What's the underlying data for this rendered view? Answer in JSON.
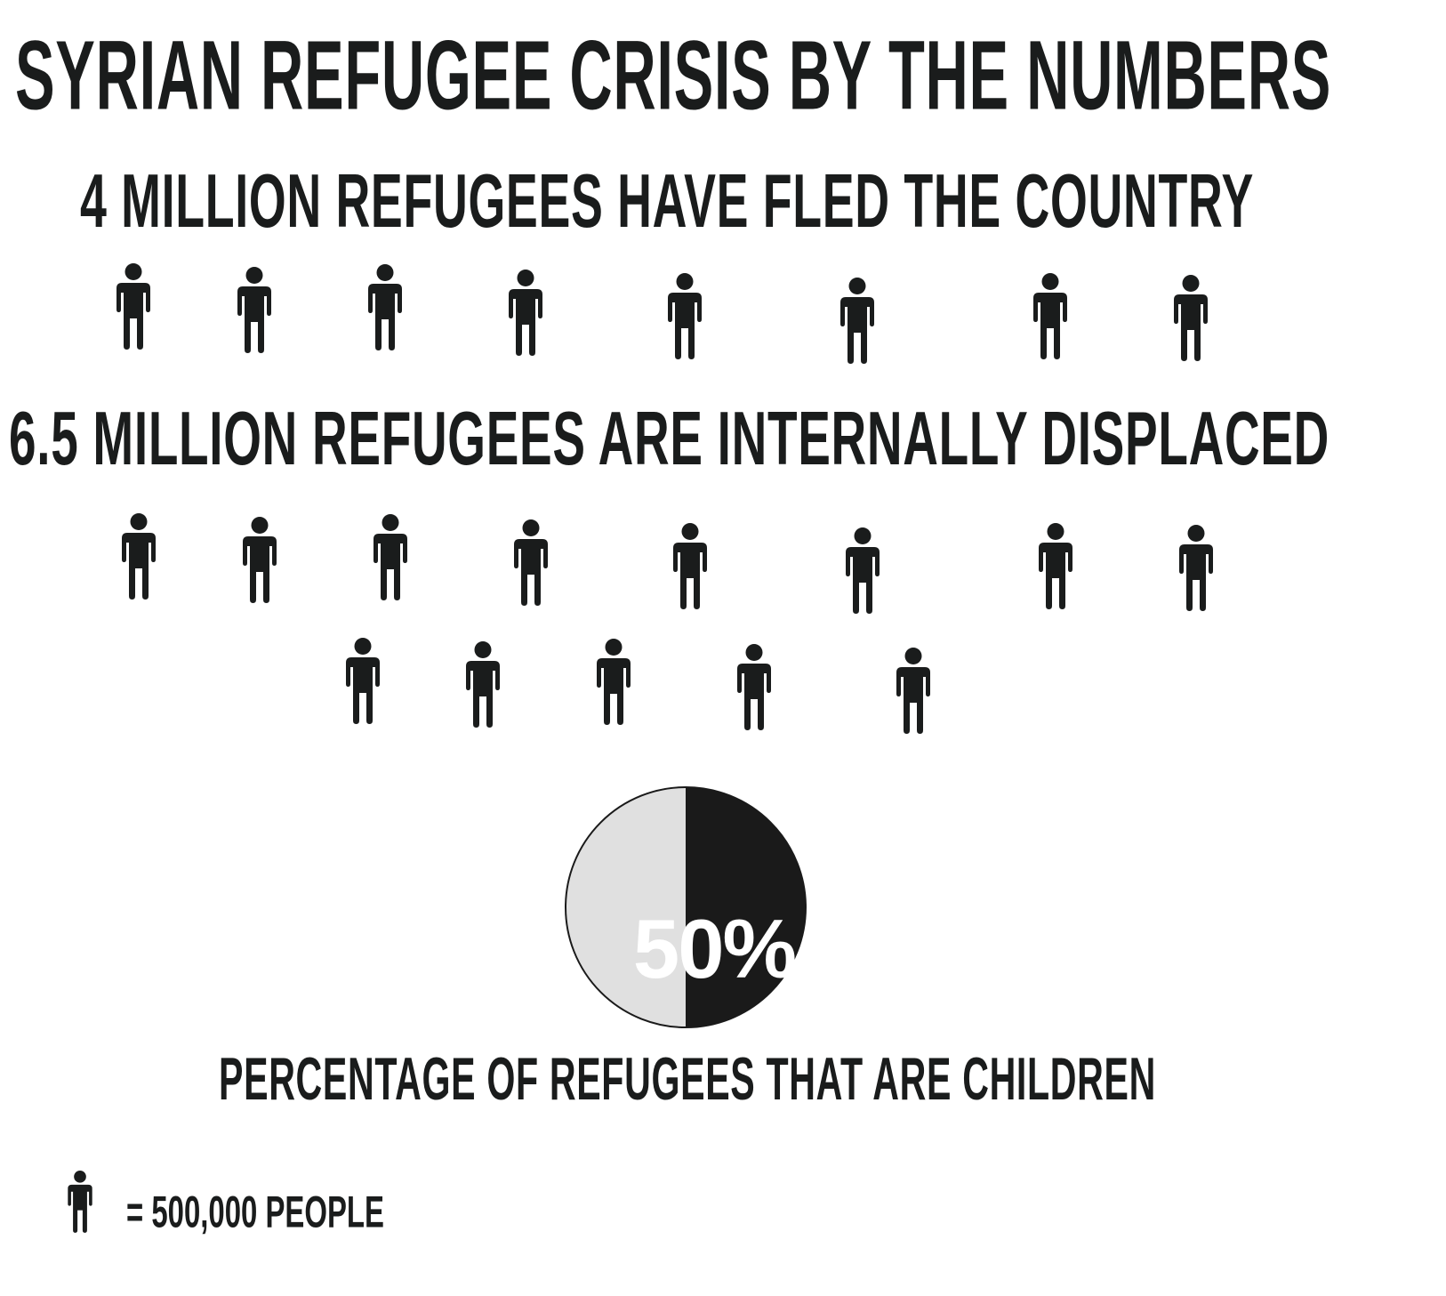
{
  "title": "SYRIAN REFUGEE CRISIS BY THE NUMBERS",
  "fled_heading": "4 MILLION REFUGEES HAVE FLED THE COUNTRY",
  "internal_heading": "6.5 MILLION REFUGEES ARE INTERNALLY DISPLACED",
  "pie_caption": "PERCENTAGE OF REFUGEES THAT ARE CHILDREN",
  "legend": {
    "icon": "person-icon",
    "text": "= 500,000 PEOPLE"
  },
  "colors": {
    "ink": "#1a1c1c",
    "light": "#e0e0e0",
    "dark": "#1a1a1a"
  },
  "chart_data": [
    {
      "type": "pictogram",
      "title": "4 MILLION REFUGEES HAVE FLED THE COUNTRY",
      "unit_value": 500000,
      "icon_count": 8,
      "value": 4000000
    },
    {
      "type": "pictogram",
      "title": "6.5 MILLION REFUGEES ARE INTERNALLY DISPLACED",
      "unit_value": 500000,
      "icon_count": 13,
      "value": 6500000
    },
    {
      "type": "pie",
      "title": "PERCENTAGE OF REFUGEES THAT ARE CHILDREN",
      "slices": [
        {
          "label": "",
          "value": 50,
          "color": "#1a1a1a"
        },
        {
          "label": "",
          "value": 50,
          "color": "#e0e0e0"
        }
      ],
      "center_label": "50%"
    }
  ]
}
